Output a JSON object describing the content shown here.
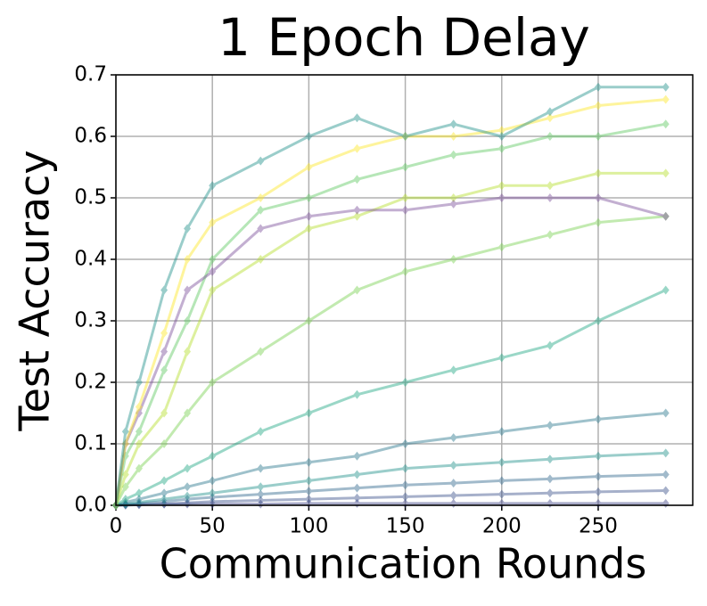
{
  "chart_data": {
    "type": "line",
    "title": "1 Epoch Delay",
    "title_color": "#ff0000",
    "xlabel": "Communication Rounds",
    "ylabel": "Test Accuracy",
    "x": [
      0,
      5,
      12,
      25,
      37,
      50,
      75,
      100,
      125,
      150,
      175,
      200,
      225,
      250,
      285
    ],
    "xlim": [
      0,
      299
    ],
    "xticks": [
      0,
      50,
      100,
      150,
      200,
      250
    ],
    "ylim": [
      0,
      0.7
    ],
    "yticks": [
      {
        "value": 0,
        "label": "0.0"
      },
      {
        "value": 0.1,
        "label": "0.1"
      },
      {
        "value": 0.2,
        "label": "0.2"
      },
      {
        "value": 0.3,
        "label": "0.3"
      },
      {
        "value": 0.4,
        "label": "0.4"
      },
      {
        "value": 0.5,
        "label": "0.5"
      },
      {
        "value": 0.6,
        "label": "0.6"
      },
      {
        "value": 0.7,
        "label": "0.7"
      }
    ],
    "grid": true,
    "alpha": 0.45,
    "series": [
      {
        "color": "#414487",
        "values": [
          0,
          0.001,
          0.001,
          0.002,
          0.002,
          0.002,
          0.002,
          0.003,
          0.003,
          0.003,
          0.003,
          0.003,
          0.003,
          0.003,
          0.003
        ]
      },
      {
        "color": "#3b528b",
        "values": [
          0,
          0,
          0.001,
          0.002,
          0.004,
          0.006,
          0.008,
          0.01,
          0.012,
          0.014,
          0.016,
          0.018,
          0.02,
          0.022,
          0.024
        ]
      },
      {
        "color": "#31688e",
        "values": [
          0,
          0.001,
          0.003,
          0.006,
          0.01,
          0.013,
          0.018,
          0.023,
          0.028,
          0.033,
          0.036,
          0.04,
          0.043,
          0.047,
          0.05
        ]
      },
      {
        "color": "#21918c",
        "values": [
          0,
          0.002,
          0.005,
          0.01,
          0.015,
          0.02,
          0.03,
          0.04,
          0.05,
          0.06,
          0.065,
          0.07,
          0.075,
          0.08,
          0.085
        ]
      },
      {
        "color": "#2a788e",
        "values": [
          0,
          0.005,
          0.01,
          0.02,
          0.03,
          0.04,
          0.06,
          0.07,
          0.08,
          0.1,
          0.11,
          0.12,
          0.13,
          0.14,
          0.15
        ]
      },
      {
        "color": "#22a884",
        "values": [
          0,
          0.01,
          0.02,
          0.04,
          0.06,
          0.08,
          0.12,
          0.15,
          0.18,
          0.2,
          0.22,
          0.24,
          0.26,
          0.3,
          0.35
        ]
      },
      {
        "color": "#7ad151",
        "values": [
          0,
          0.03,
          0.06,
          0.1,
          0.15,
          0.2,
          0.25,
          0.3,
          0.35,
          0.38,
          0.4,
          0.42,
          0.44,
          0.46,
          0.47
        ]
      },
      {
        "color": "#b5de2b",
        "values": [
          0,
          0.05,
          0.1,
          0.15,
          0.25,
          0.35,
          0.4,
          0.45,
          0.47,
          0.5,
          0.5,
          0.52,
          0.52,
          0.54,
          0.54
        ]
      },
      {
        "color": "#5ec962",
        "values": [
          0,
          0.08,
          0.12,
          0.22,
          0.3,
          0.4,
          0.48,
          0.5,
          0.53,
          0.55,
          0.57,
          0.58,
          0.6,
          0.6,
          0.62
        ]
      },
      {
        "color": "#7b4f9a",
        "values": [
          0,
          0.1,
          0.15,
          0.25,
          0.35,
          0.38,
          0.45,
          0.47,
          0.48,
          0.48,
          0.49,
          0.5,
          0.5,
          0.5,
          0.47
        ]
      },
      {
        "color": "#fde725",
        "values": [
          0,
          0.1,
          0.16,
          0.28,
          0.4,
          0.46,
          0.5,
          0.55,
          0.58,
          0.6,
          0.6,
          0.61,
          0.63,
          0.65,
          0.66
        ]
      },
      {
        "color": "#21918c",
        "values": [
          0,
          0.12,
          0.2,
          0.35,
          0.45,
          0.52,
          0.56,
          0.6,
          0.63,
          0.6,
          0.62,
          0.6,
          0.64,
          0.68,
          0.68
        ]
      }
    ]
  }
}
